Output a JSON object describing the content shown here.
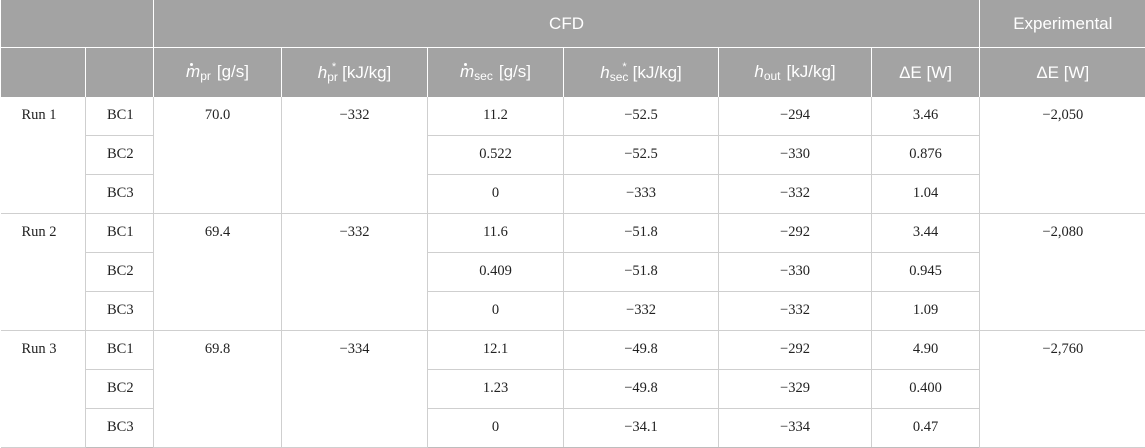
{
  "header": {
    "group_cfd": "CFD",
    "group_experimental": "Experimental",
    "col_mpr_sym": "m",
    "col_mpr_sub": "pr",
    "col_mpr_unit": "[g/s]",
    "col_hpr_sym": "h",
    "col_hpr_sub": "pr",
    "col_hpr_sup": "*",
    "col_hpr_unit": "[kJ/kg]",
    "col_msec_sym": "m",
    "col_msec_sub": "sec",
    "col_msec_unit": "[g/s]",
    "col_hsec_sym": "h",
    "col_hsec_sub": "sec",
    "col_hsec_sup": "*",
    "col_hsec_unit": "[kJ/kg]",
    "col_hout_sym": "h",
    "col_hout_sub": "out",
    "col_hout_unit": "[kJ/kg]",
    "col_de_cfd": "ΔE [W]",
    "col_de_exp": "ΔE [W]"
  },
  "runs": [
    {
      "name": "Run 1",
      "m_pr": "70.0",
      "h_pr": "−332",
      "de_exp": "−2,050",
      "rows": [
        {
          "bc": "BC1",
          "m_sec": "11.2",
          "h_sec": "−52.5",
          "h_out": "−294",
          "de": "3.46"
        },
        {
          "bc": "BC2",
          "m_sec": "0.522",
          "h_sec": "−52.5",
          "h_out": "−330",
          "de": "0.876"
        },
        {
          "bc": "BC3",
          "m_sec": "0",
          "h_sec": "−333",
          "h_out": "−332",
          "de": "1.04"
        }
      ]
    },
    {
      "name": "Run 2",
      "m_pr": "69.4",
      "h_pr": "−332",
      "de_exp": "−2,080",
      "rows": [
        {
          "bc": "BC1",
          "m_sec": "11.6",
          "h_sec": "−51.8",
          "h_out": "−292",
          "de": "3.44"
        },
        {
          "bc": "BC2",
          "m_sec": "0.409",
          "h_sec": "−51.8",
          "h_out": "−330",
          "de": "0.945"
        },
        {
          "bc": "BC3",
          "m_sec": "0",
          "h_sec": "−332",
          "h_out": "−332",
          "de": "1.09"
        }
      ]
    },
    {
      "name": "Run 3",
      "m_pr": "69.8",
      "h_pr": "−334",
      "de_exp": "−2,760",
      "rows": [
        {
          "bc": "BC1",
          "m_sec": "12.1",
          "h_sec": "−49.8",
          "h_out": "−292",
          "de": "4.90"
        },
        {
          "bc": "BC2",
          "m_sec": "1.23",
          "h_sec": "−49.8",
          "h_out": "−329",
          "de": "0.400"
        },
        {
          "bc": "BC3",
          "m_sec": "0",
          "h_sec": "−34.1",
          "h_out": "−334",
          "de": "0.47"
        }
      ]
    }
  ]
}
